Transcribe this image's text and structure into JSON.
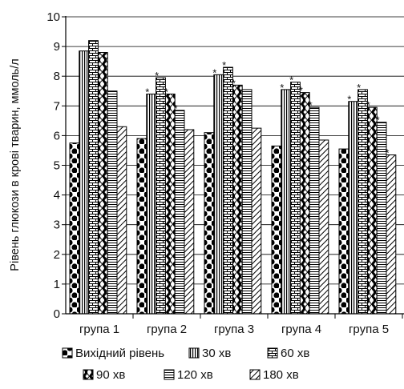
{
  "chart_data": {
    "type": "bar",
    "ylabel": "Рівень глюкози в крові тварин, ммоль/л",
    "ylim": [
      0,
      10
    ],
    "yticks": [
      "0",
      "1",
      "2",
      "3",
      "4",
      "5",
      "6",
      "7",
      "8",
      "9",
      "10"
    ],
    "categories": [
      "група 1",
      "група 2",
      "група 3",
      "група 4",
      "група 5"
    ],
    "grid": "horizontal",
    "legend_position": "bottom",
    "series": [
      {
        "name": "Вихідний рівень",
        "pattern": "circles",
        "values": [
          5.75,
          5.9,
          6.1,
          5.65,
          5.55
        ],
        "significant": [
          false,
          false,
          false,
          false,
          false
        ]
      },
      {
        "name": "30 хв",
        "pattern": "vertical-lines",
        "values": [
          8.85,
          7.4,
          8.05,
          7.55,
          7.15
        ],
        "significant": [
          false,
          true,
          true,
          true,
          true
        ]
      },
      {
        "name": "60 хв",
        "pattern": "bricks",
        "values": [
          9.2,
          7.95,
          8.3,
          7.8,
          7.55
        ],
        "significant": [
          false,
          true,
          true,
          true,
          true
        ]
      },
      {
        "name": "90 хв",
        "pattern": "waves",
        "values": [
          8.8,
          7.4,
          7.7,
          7.45,
          6.95
        ],
        "significant": [
          false,
          true,
          true,
          true,
          true
        ]
      },
      {
        "name": "120 хв",
        "pattern": "horizontal-lines",
        "values": [
          7.5,
          6.85,
          7.55,
          6.95,
          6.45
        ],
        "significant": [
          false,
          true,
          false,
          true,
          true
        ]
      },
      {
        "name": "180 хв",
        "pattern": "diagonal-lines",
        "values": [
          6.3,
          6.2,
          6.25,
          5.85,
          5.35
        ],
        "significant": [
          false,
          false,
          false,
          false,
          true
        ]
      }
    ],
    "annotation_mark": "*"
  }
}
